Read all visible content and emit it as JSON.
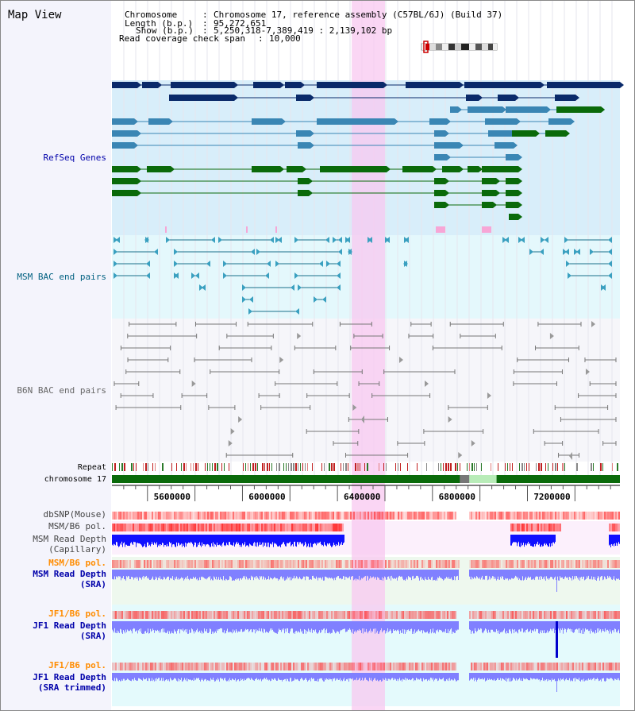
{
  "view_title": "Map View",
  "header": {
    "chromosome_label": "Chromosome",
    "chromosome_value": "Chromosome 17, reference assembly (C57BL/6J) (Build 37)",
    "length_label": "Length (b.p.)",
    "length_value": "95,272,651",
    "show_label": "Show (b.p.)",
    "show_value": "5,250,318-7,389,419 : 2,139,102 bp",
    "coverage_label": "Read coverage check span",
    "coverage_value": "10,000"
  },
  "tracks": {
    "refseq": "RefSeq Genes",
    "msm_bac": "MSM BAC end pairs",
    "b6n_bac": "B6N BAC end pairs",
    "repeat": "Repeat",
    "chromosome": "chromosome 17",
    "dbsnp": "dbSNP(Mouse)",
    "msm_b6_pol": "MSM/B6 pol.",
    "msm_depth_cap_1": "MSM Read Depth",
    "msm_depth_cap_2": "(Capillary)",
    "msm_b6_pol_2": "MSM/B6 pol.",
    "msm_depth_sra_1": "MSM Read Depth",
    "msm_depth_sra_2": "(SRA)",
    "jf1_b6_pol": "JF1/B6 pol.",
    "jf1_depth_sra_1": "JF1 Read Depth",
    "jf1_depth_sra_2": "(SRA)",
    "jf1_b6_pol_2": "JF1/B6 pol.",
    "jf1_depth_trim_1": "JF1 Read Depth",
    "jf1_depth_trim_2": "(SRA trimmed)"
  },
  "axis": {
    "ticks": [
      "5600000",
      "6000000",
      "6400000",
      "6800000",
      "7200000"
    ],
    "tick_values": [
      5600000,
      6000000,
      6400000,
      6800000,
      7200000
    ],
    "range": [
      5250318,
      7389419
    ]
  },
  "highlight_region": [
    6260000,
    6400000
  ],
  "colors": {
    "label_blue": "#0000aa",
    "label_orange": "#ff8c00",
    "refseq_bg": "#d8eefa",
    "msm_bac_bg": "#e4f8fc",
    "b6n_bg": "#f6f6fa",
    "highlight": "#f8c8f0",
    "gene_dark": "#0a2a6a",
    "gene_mid": "#3a86b4",
    "gene_green": "#0a6a0a",
    "depth_blue": "#1010ff",
    "depth_light": "#8080ff",
    "pol_red": "#ff6060"
  }
}
